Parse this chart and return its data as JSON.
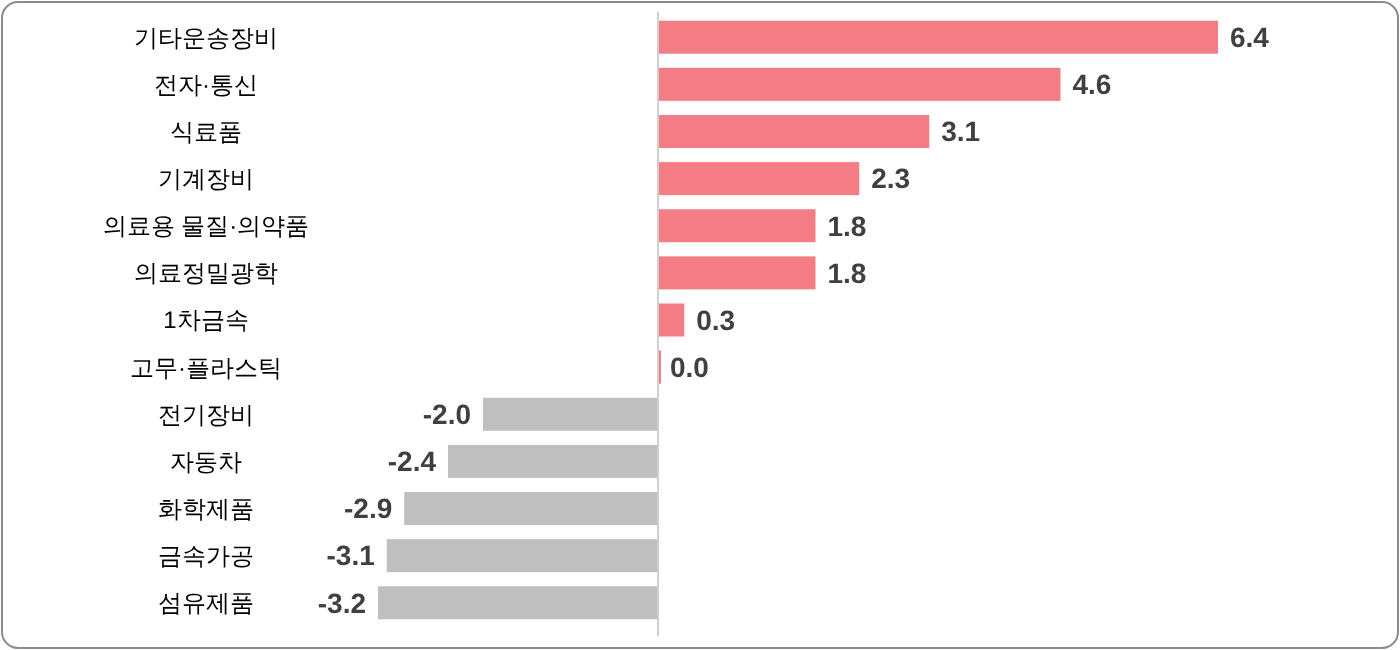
{
  "chart_data": {
    "type": "bar",
    "orientation": "horizontal",
    "categories": [
      "기타운송장비",
      "전자·통신",
      "식료품",
      "기계장비",
      "의료용 물질·의약품",
      "의료정밀광학",
      "1차금속",
      "고무·플라스틱",
      "전기장비",
      "자동차",
      "화학제품",
      "금속가공",
      "섬유제품"
    ],
    "values": [
      6.4,
      4.6,
      3.1,
      2.3,
      1.8,
      1.8,
      0.3,
      0.0,
      -2.0,
      -2.4,
      -2.9,
      -3.1,
      -3.2
    ],
    "colors": [
      "#f47c85",
      "#f47c85",
      "#f47c85",
      "#f47c85",
      "#f47c85",
      "#f47c85",
      "#f47c85",
      "#f47c85",
      "#bfbfbf",
      "#bfbfbf",
      "#bfbfbf",
      "#bfbfbf",
      "#bfbfbf"
    ],
    "value_labels": [
      "6.4",
      "4.6",
      "3.1",
      "2.3",
      "1.8",
      "1.8",
      "0.3",
      "0.0",
      "-2.0",
      "-2.4",
      "-2.9",
      "-3.1",
      "-3.2"
    ]
  }
}
